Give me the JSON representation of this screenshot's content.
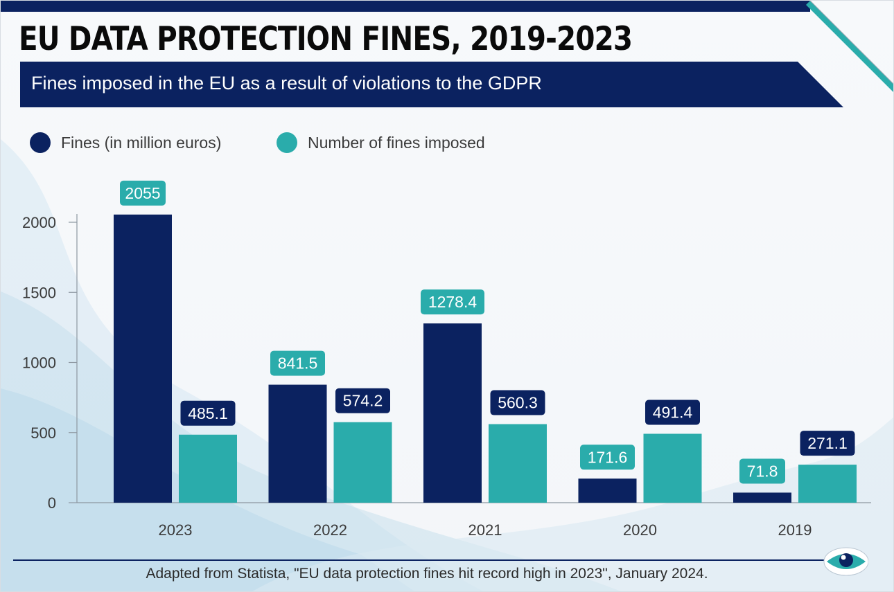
{
  "header": {
    "title": "EU DATA PROTECTION FINES, 2019-2023",
    "subtitle": "Fines imposed in the EU as a result of violations to the GDPR"
  },
  "footer": {
    "source": "Adapted from Statista, \"EU data protection fines hit record high in 2023\", January 2024."
  },
  "colors": {
    "navy": "#0b2260",
    "teal": "#2aacab"
  },
  "icons": {
    "footer_logo": "eye-icon"
  },
  "chart_data": {
    "type": "bar",
    "categories": [
      "2023",
      "2022",
      "2021",
      "2020",
      "2019"
    ],
    "series": [
      {
        "name": "Fines (in million euros)",
        "color": "#0b2260",
        "values": [
          2055,
          841.5,
          1278.4,
          171.6,
          71.8
        ],
        "labels": [
          "2055",
          "841.5",
          "1278.4",
          "171.6",
          "71.8"
        ]
      },
      {
        "name": "Number of fines imposed",
        "color": "#2aacab",
        "values": [
          485.1,
          574.2,
          560.3,
          491.4,
          271.1
        ],
        "labels": [
          "485.1",
          "574.2",
          "560.3",
          "491.4",
          "271.1"
        ]
      }
    ],
    "yticks": [
      0,
      500,
      1000,
      1500,
      2000
    ],
    "ylim": [
      0,
      2000
    ],
    "xlabel": "",
    "ylabel": "",
    "legend": "top-left",
    "grid": false
  }
}
